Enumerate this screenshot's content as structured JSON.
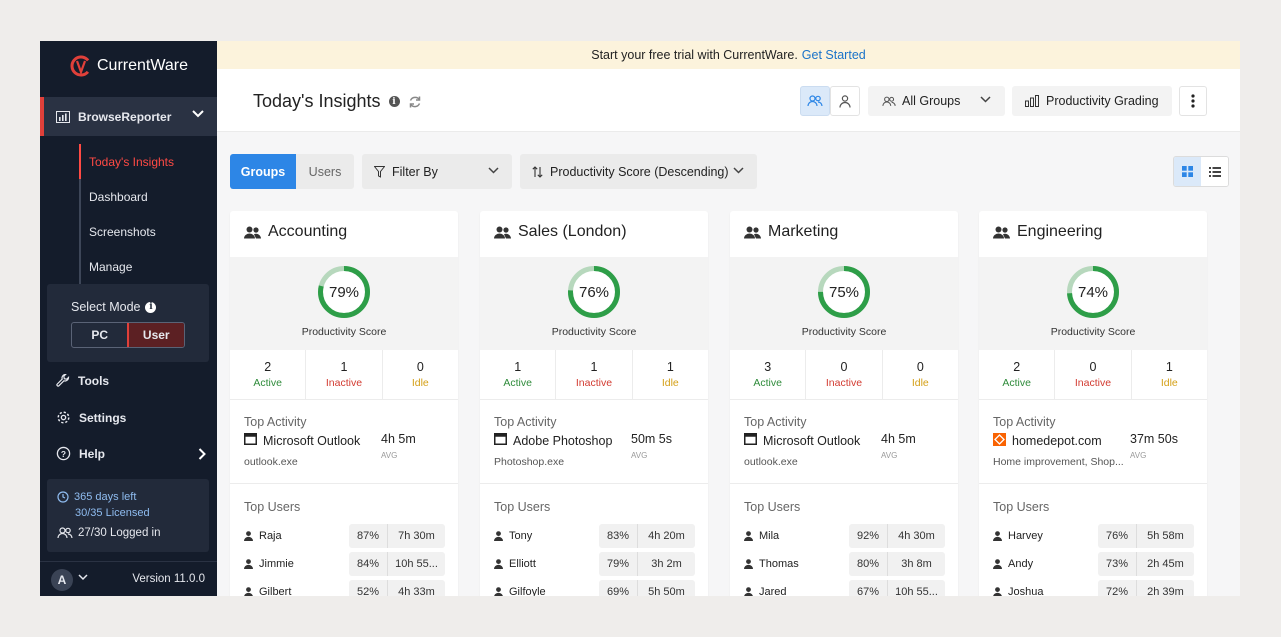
{
  "brand": {
    "name": "CurrentWare"
  },
  "sidebar": {
    "product": "BrowseReporter",
    "subnav": [
      "Today's Insights",
      "Dashboard",
      "Screenshots",
      "Manage"
    ],
    "mode": {
      "title": "Select Mode",
      "options": [
        "PC",
        "User"
      ],
      "selected": "User"
    },
    "nav": [
      "Tools",
      "Settings",
      "Help"
    ],
    "license": {
      "days": "365 days left",
      "licensed": "30/35 Licensed",
      "logged": "27/30 Logged in"
    },
    "avatar": "A",
    "version": "Version 11.0.0"
  },
  "banner": {
    "text": "Start your free trial with CurrentWare.",
    "link": "Get Started"
  },
  "header": {
    "title": "Today's Insights",
    "groups_dropdown": "All Groups",
    "grading_button": "Productivity Grading"
  },
  "toolbar": {
    "tabs": [
      "Groups",
      "Users"
    ],
    "filter": "Filter By",
    "sort": "Productivity Score (Descending)"
  },
  "colors": {
    "accent": "#2d86e6",
    "brand_red": "#e0403a",
    "ring_green": "#2e9e48",
    "ring_light": "#b7d8bd",
    "sidebar_bg": "#141c2b"
  },
  "labels": {
    "score": "Productivity Score",
    "active": "Active",
    "inactive": "Inactive",
    "idle": "Idle",
    "top_activity": "Top Activity",
    "top_users": "Top Users",
    "avg": "AVG"
  },
  "cards": [
    {
      "name": "Accounting",
      "score": "79%",
      "score_value": 0.79,
      "active": "2",
      "inactive": "1",
      "idle": "0",
      "activity": {
        "app": "Microsoft Outlook",
        "sub": "outlook.exe",
        "time": "4h 5m",
        "icon": "window-icon"
      },
      "users": [
        {
          "name": "Raja",
          "pct": "87%",
          "time": "7h 30m"
        },
        {
          "name": "Jimmie",
          "pct": "84%",
          "time": "10h 55..."
        },
        {
          "name": "Gilbert",
          "pct": "52%",
          "time": "4h 33m"
        }
      ]
    },
    {
      "name": "Sales (London)",
      "score": "76%",
      "score_value": 0.76,
      "active": "1",
      "inactive": "1",
      "idle": "1",
      "activity": {
        "app": "Adobe Photoshop",
        "sub": "Photoshop.exe",
        "time": "50m 5s",
        "icon": "window-icon"
      },
      "users": [
        {
          "name": "Tony",
          "pct": "83%",
          "time": "4h 20m"
        },
        {
          "name": "Elliott",
          "pct": "79%",
          "time": "3h 2m"
        },
        {
          "name": "Gilfoyle",
          "pct": "69%",
          "time": "5h 50m"
        }
      ]
    },
    {
      "name": "Marketing",
      "score": "75%",
      "score_value": 0.75,
      "active": "3",
      "inactive": "0",
      "idle": "0",
      "activity": {
        "app": "Microsoft Outlook",
        "sub": "outlook.exe",
        "time": "4h 5m",
        "icon": "window-icon"
      },
      "users": [
        {
          "name": "Mila",
          "pct": "92%",
          "time": "4h 30m"
        },
        {
          "name": "Thomas",
          "pct": "80%",
          "time": "3h 8m"
        },
        {
          "name": "Jared",
          "pct": "67%",
          "time": "10h 55..."
        }
      ]
    },
    {
      "name": "Engineering",
      "score": "74%",
      "score_value": 0.74,
      "active": "2",
      "inactive": "0",
      "idle": "1",
      "activity": {
        "app": "homedepot.com",
        "sub": "Home improvement, Shop...",
        "time": "37m 50s",
        "icon": "homedepot-favicon-icon"
      },
      "users": [
        {
          "name": "Harvey",
          "pct": "76%",
          "time": "5h 58m"
        },
        {
          "name": "Andy",
          "pct": "73%",
          "time": "2h 45m"
        },
        {
          "name": "Joshua",
          "pct": "72%",
          "time": "2h 39m"
        }
      ]
    }
  ]
}
